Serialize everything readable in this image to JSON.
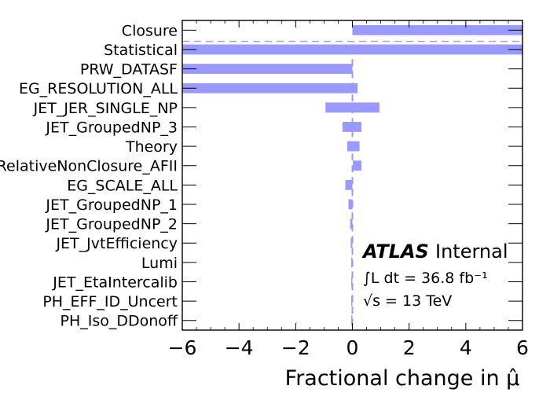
{
  "chart_data": {
    "type": "bar",
    "orientation": "horizontal",
    "xlabel": "Fractional change in μ̂",
    "xlim": [
      -6,
      6
    ],
    "x_ticks": [
      "−6",
      "−4",
      "−2",
      "0",
      "2",
      "4",
      "6"
    ],
    "grid": false,
    "bar_color": "#9999ff",
    "categories": [
      "Closure",
      "Statistical",
      "PRW_DATASF",
      "EG_RESOLUTION_ALL",
      "JET_JER_SINGLE_NP",
      "JET_GroupedNP_3",
      "Theory",
      "RelativeNonClosure_AFII",
      "EG_SCALE_ALL",
      "JET_GroupedNP_1",
      "JET_GroupedNP_2",
      "JET_JvtEfficiency",
      "Lumi",
      "JET_EtaIntercalib",
      "PH_EFF_ID_Uncert",
      "PH_Iso_DDonoff"
    ],
    "ranges": [
      [
        0,
        6.2
      ],
      [
        -6.2,
        6.2
      ],
      [
        -6.2,
        0
      ],
      [
        -6.2,
        0.18
      ],
      [
        -0.95,
        0.95
      ],
      [
        -0.35,
        0.32
      ],
      [
        -0.18,
        0.25
      ],
      [
        0.02,
        0.32
      ],
      [
        -0.25,
        0.0
      ],
      [
        -0.14,
        0.0
      ],
      [
        -0.08,
        0.0
      ],
      [
        -0.06,
        0.0
      ],
      [
        -0.04,
        0.0
      ],
      [
        -0.04,
        0.0
      ],
      [
        -0.04,
        0.0
      ],
      [
        -0.04,
        0.0
      ]
    ],
    "annotation": {
      "experiment": "ATLAS",
      "status": "Internal",
      "lumi_text": "∫L dt = 36.8 fb⁻¹",
      "energy_text": "√s = 13 TeV"
    }
  }
}
